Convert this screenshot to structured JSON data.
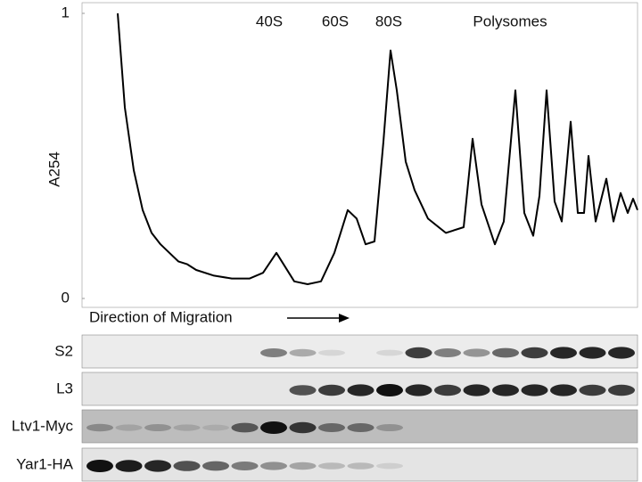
{
  "chart_data": {
    "type": "line",
    "y_label": "A254",
    "annotations": [
      "40S",
      "60S",
      "80S",
      "Polysomes"
    ],
    "x_label": "Direction of Migration",
    "blots": [
      "S2",
      "L3",
      "Ltv1-Myc",
      "Yar1-HA"
    ],
    "x": [
      40,
      48,
      58,
      68,
      78,
      88,
      98,
      108,
      118,
      128,
      148,
      168,
      188,
      203,
      218,
      228,
      238,
      253,
      268,
      283,
      298,
      308,
      318,
      328,
      338,
      346,
      353,
      363,
      373,
      388,
      408,
      428,
      438,
      448,
      463,
      473,
      486,
      496,
      506,
      513,
      521,
      530,
      538,
      548,
      556,
      563,
      568,
      576,
      588,
      596,
      604,
      612,
      618,
      623
    ],
    "values": [
      1.0,
      0.67,
      0.45,
      0.31,
      0.23,
      0.19,
      0.16,
      0.13,
      0.12,
      0.1,
      0.08,
      0.07,
      0.07,
      0.09,
      0.16,
      0.11,
      0.06,
      0.05,
      0.06,
      0.16,
      0.31,
      0.28,
      0.19,
      0.2,
      0.55,
      0.87,
      0.73,
      0.48,
      0.38,
      0.28,
      0.23,
      0.25,
      0.56,
      0.33,
      0.19,
      0.27,
      0.73,
      0.3,
      0.22,
      0.36,
      0.73,
      0.34,
      0.27,
      0.62,
      0.3,
      0.3,
      0.5,
      0.27,
      0.42,
      0.27,
      0.37,
      0.3,
      0.35,
      0.31
    ],
    "color": "#000000",
    "xlim": [
      0,
      623
    ],
    "ylim": [
      0,
      1
    ],
    "yticks": [
      0,
      1
    ]
  }
}
